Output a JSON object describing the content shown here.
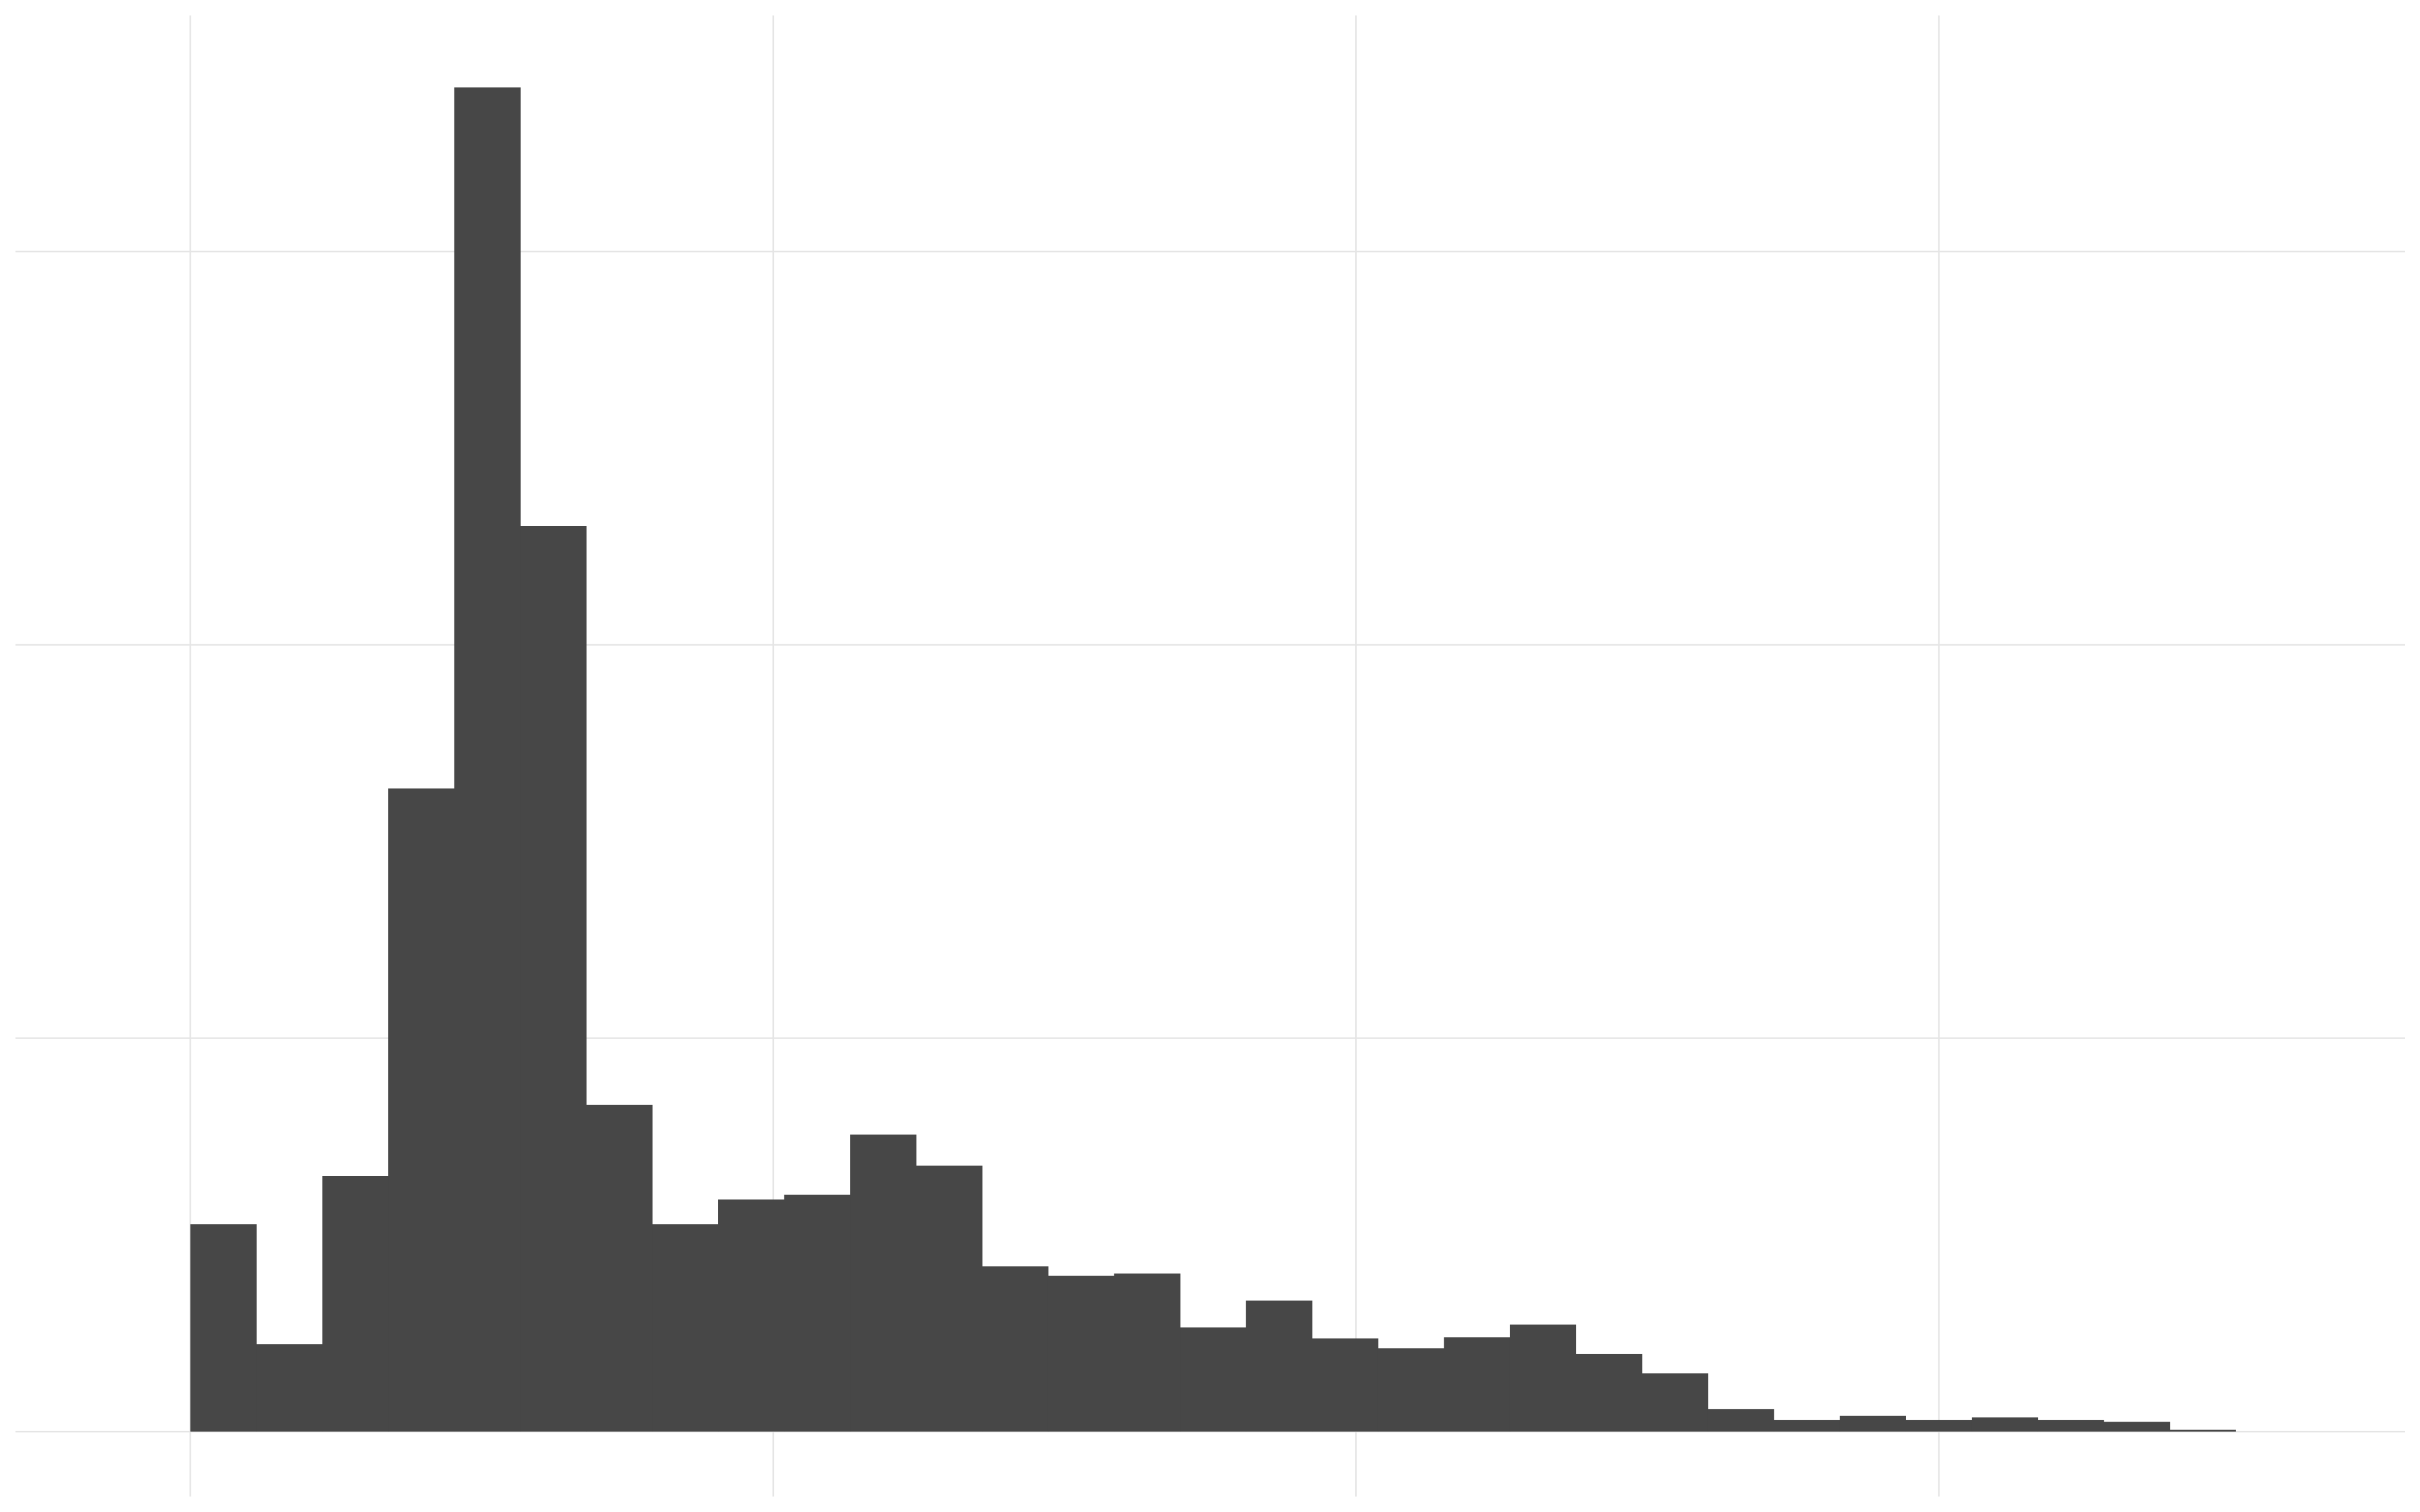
{
  "chart_data": {
    "type": "bar",
    "subtype": "histogram",
    "title": "",
    "xlabel": "",
    "ylabel": "",
    "bar_color": "#474747",
    "grid_color": "#e5e5e5",
    "background": "#ffffff",
    "grid": true,
    "legend": "none",
    "xlim": [
      -0.3,
      3.8
    ],
    "ylim": [
      -0.165,
      3.6
    ],
    "x_gridlines": [
      0,
      1,
      2,
      3
    ],
    "y_gridlines": [
      0,
      1,
      2,
      3
    ],
    "bin_width": 0.1132,
    "bins": [
      {
        "x0": 0.0,
        "x1": 0.1132,
        "count": 0.527
      },
      {
        "x0": 0.1132,
        "x1": 0.2264,
        "count": 0.222
      },
      {
        "x0": 0.2264,
        "x1": 0.3396,
        "count": 0.65
      },
      {
        "x0": 0.3396,
        "x1": 0.4528,
        "count": 1.635
      },
      {
        "x0": 0.4528,
        "x1": 0.566,
        "count": 3.417
      },
      {
        "x0": 0.566,
        "x1": 0.6792,
        "count": 2.302
      },
      {
        "x0": 0.6792,
        "x1": 0.7924,
        "count": 0.831
      },
      {
        "x0": 0.7924,
        "x1": 0.9056,
        "count": 0.527
      },
      {
        "x0": 0.9056,
        "x1": 1.0188,
        "count": 0.59
      },
      {
        "x0": 1.0188,
        "x1": 1.132,
        "count": 0.602
      },
      {
        "x0": 1.132,
        "x1": 1.2452,
        "count": 0.755
      },
      {
        "x0": 1.2452,
        "x1": 1.3584,
        "count": 0.676
      },
      {
        "x0": 1.3584,
        "x1": 1.4716,
        "count": 0.42
      },
      {
        "x0": 1.4716,
        "x1": 1.5848,
        "count": 0.396
      },
      {
        "x0": 1.5848,
        "x1": 1.698,
        "count": 0.402
      },
      {
        "x0": 1.698,
        "x1": 1.8112,
        "count": 0.265
      },
      {
        "x0": 1.8112,
        "x1": 1.9244,
        "count": 0.333
      },
      {
        "x0": 1.9244,
        "x1": 2.0376,
        "count": 0.237
      },
      {
        "x0": 2.0376,
        "x1": 2.1508,
        "count": 0.212
      },
      {
        "x0": 2.1508,
        "x1": 2.264,
        "count": 0.24
      },
      {
        "x0": 2.264,
        "x1": 2.3772,
        "count": 0.272
      },
      {
        "x0": 2.3772,
        "x1": 2.4904,
        "count": 0.197
      },
      {
        "x0": 2.4904,
        "x1": 2.6036,
        "count": 0.148
      },
      {
        "x0": 2.6036,
        "x1": 2.7168,
        "count": 0.057
      },
      {
        "x0": 2.7168,
        "x1": 2.83,
        "count": 0.03
      },
      {
        "x0": 2.83,
        "x1": 2.9432,
        "count": 0.04
      },
      {
        "x0": 2.9432,
        "x1": 3.0564,
        "count": 0.03
      },
      {
        "x0": 3.0564,
        "x1": 3.1696,
        "count": 0.036
      },
      {
        "x0": 3.1696,
        "x1": 3.2828,
        "count": 0.03
      },
      {
        "x0": 3.2828,
        "x1": 3.396,
        "count": 0.025
      },
      {
        "x0": 3.396,
        "x1": 3.5092,
        "count": 0.005
      }
    ]
  }
}
